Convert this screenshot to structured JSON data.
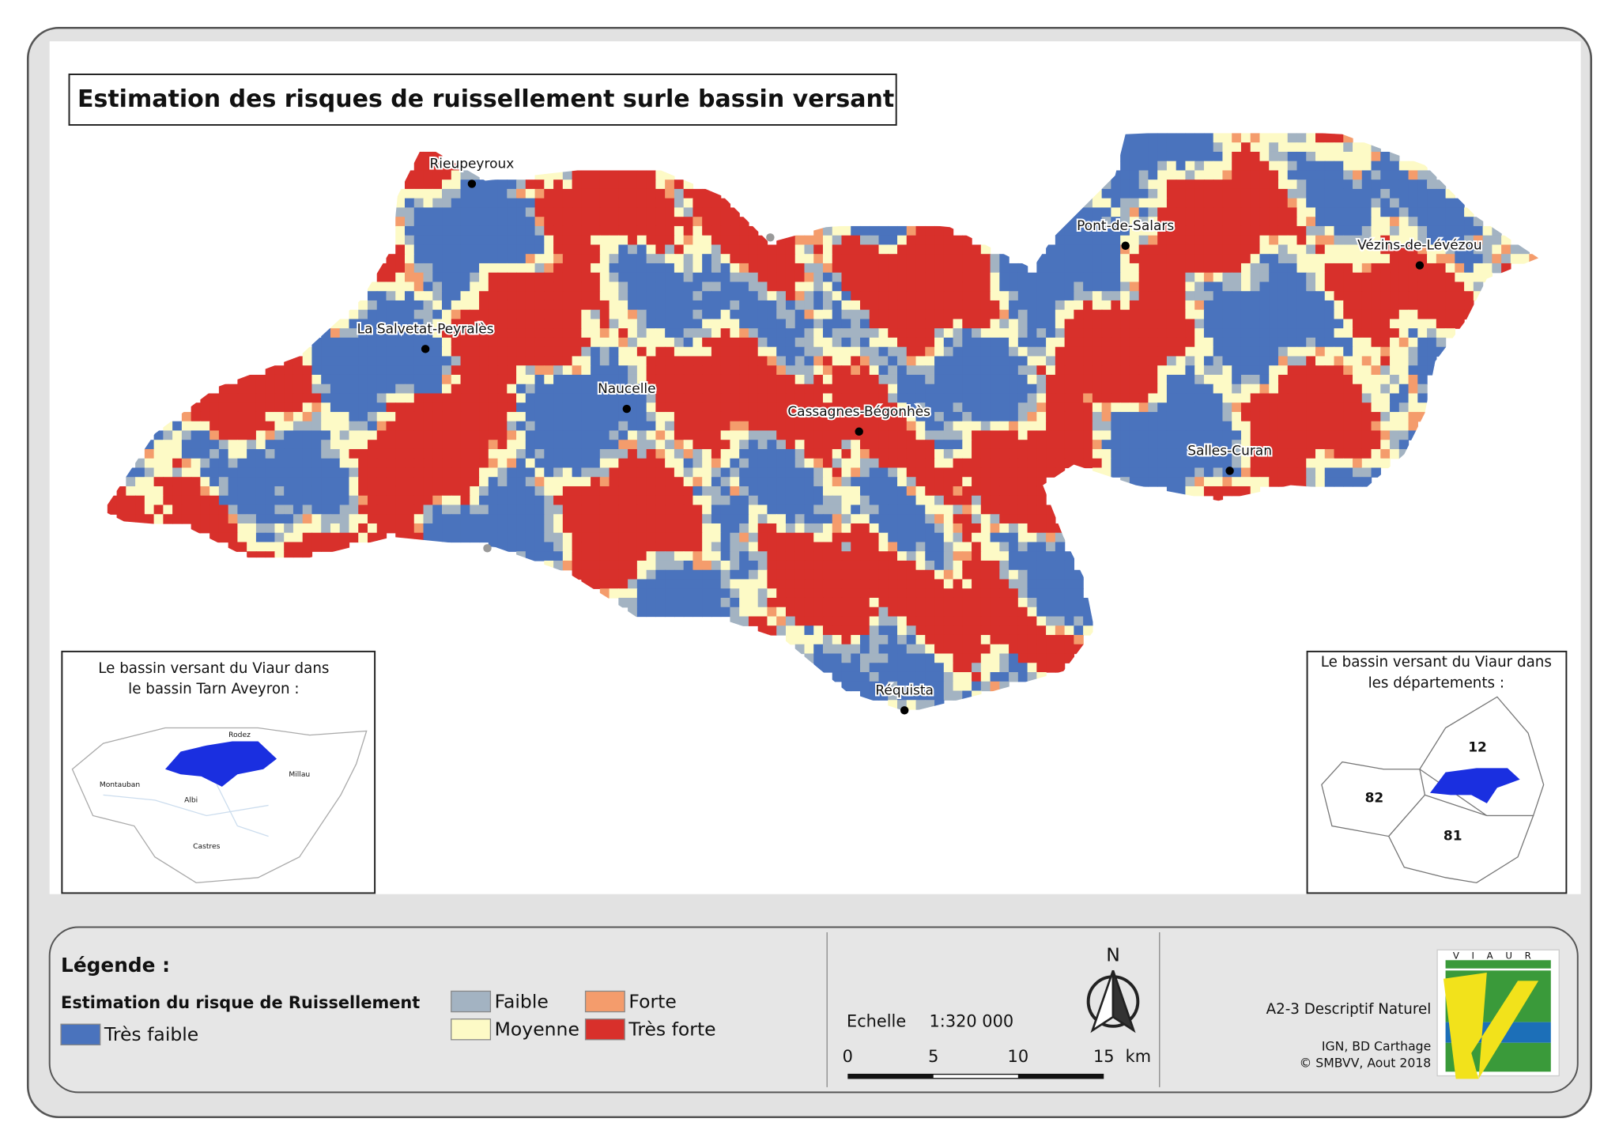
{
  "title": "Estimation des risques de ruissellement surle bassin versant",
  "map": {
    "towns": [
      "Rieupeyroux",
      "Pont-de-Salars",
      "Vézins-de-Lévézou",
      "La Salvetat-Peyralès",
      "Naucelle",
      "Cassagnes-Bégonhès",
      "Salles-Curan",
      "Réquista"
    ]
  },
  "inset_left": {
    "title": [
      "Le bassin versant du Viaur dans",
      "le bassin Tarn Aveyron :"
    ],
    "places": [
      "Rodez",
      "Millau",
      "Montauban",
      "Albi",
      "Castres"
    ]
  },
  "inset_right": {
    "title": [
      "Le bassin versant du Viaur dans",
      "les départements :"
    ],
    "departments": [
      "12",
      "82",
      "81"
    ]
  },
  "legend": {
    "heading": "Légende :",
    "subtitle": "Estimation du risque de Ruissellement",
    "classes": [
      {
        "label": "Très faible",
        "color": "#4a73bd"
      },
      {
        "label": "Faible",
        "color": "#a3b3c2"
      },
      {
        "label": "Moyenne",
        "color": "#fdfac6"
      },
      {
        "label": "Forte",
        "color": "#f49c6c"
      },
      {
        "label": "Très forte",
        "color": "#d8302b"
      }
    ]
  },
  "scale": {
    "label": "Echelle",
    "ratio": "1:320 000",
    "ticks": [
      "0",
      "5",
      "10",
      "15"
    ],
    "unit": "km"
  },
  "north": "N",
  "credits": {
    "document": "A2-3 Descriptif Naturel",
    "source": "IGN, BD Carthage",
    "copyright": "© SMBVV, Aout 2018"
  },
  "logo": "VIAUR"
}
